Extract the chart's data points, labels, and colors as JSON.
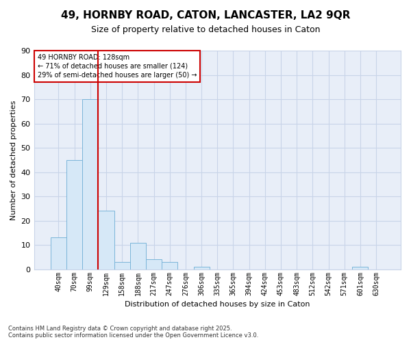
{
  "title_line1": "49, HORNBY ROAD, CATON, LANCASTER, LA2 9QR",
  "title_line2": "Size of property relative to detached houses in Caton",
  "xlabel": "Distribution of detached houses by size in Caton",
  "ylabel": "Number of detached properties",
  "categories": [
    "40sqm",
    "70sqm",
    "99sqm",
    "129sqm",
    "158sqm",
    "188sqm",
    "217sqm",
    "247sqm",
    "276sqm",
    "306sqm",
    "335sqm",
    "365sqm",
    "394sqm",
    "424sqm",
    "453sqm",
    "483sqm",
    "512sqm",
    "542sqm",
    "571sqm",
    "601sqm",
    "630sqm"
  ],
  "values": [
    13,
    45,
    70,
    24,
    3,
    11,
    4,
    3,
    0,
    1,
    0,
    0,
    0,
    0,
    0,
    0,
    0,
    0,
    0,
    1,
    0
  ],
  "bar_color": "#d6e8f7",
  "bar_edge_color": "#7ab5d9",
  "vline_color": "#cc0000",
  "annotation_text_line1": "49 HORNBY ROAD: 128sqm",
  "annotation_text_line2": "← 71% of detached houses are smaller (124)",
  "annotation_text_line3": "29% of semi-detached houses are larger (50) →",
  "annotation_box_color": "#cc0000",
  "ylim": [
    0,
    90
  ],
  "yticks": [
    0,
    10,
    20,
    30,
    40,
    50,
    60,
    70,
    80,
    90
  ],
  "footer_line1": "Contains HM Land Registry data © Crown copyright and database right 2025.",
  "footer_line2": "Contains public sector information licensed under the Open Government Licence v3.0.",
  "bg_color": "#ffffff",
  "plot_bg_color": "#e8eef8",
  "grid_color": "#c8d4e8",
  "title1_fontsize": 11,
  "title2_fontsize": 9,
  "ylabel_fontsize": 8,
  "xlabel_fontsize": 8,
  "tick_fontsize": 7,
  "footer_fontsize": 6,
  "ann_fontsize": 7
}
